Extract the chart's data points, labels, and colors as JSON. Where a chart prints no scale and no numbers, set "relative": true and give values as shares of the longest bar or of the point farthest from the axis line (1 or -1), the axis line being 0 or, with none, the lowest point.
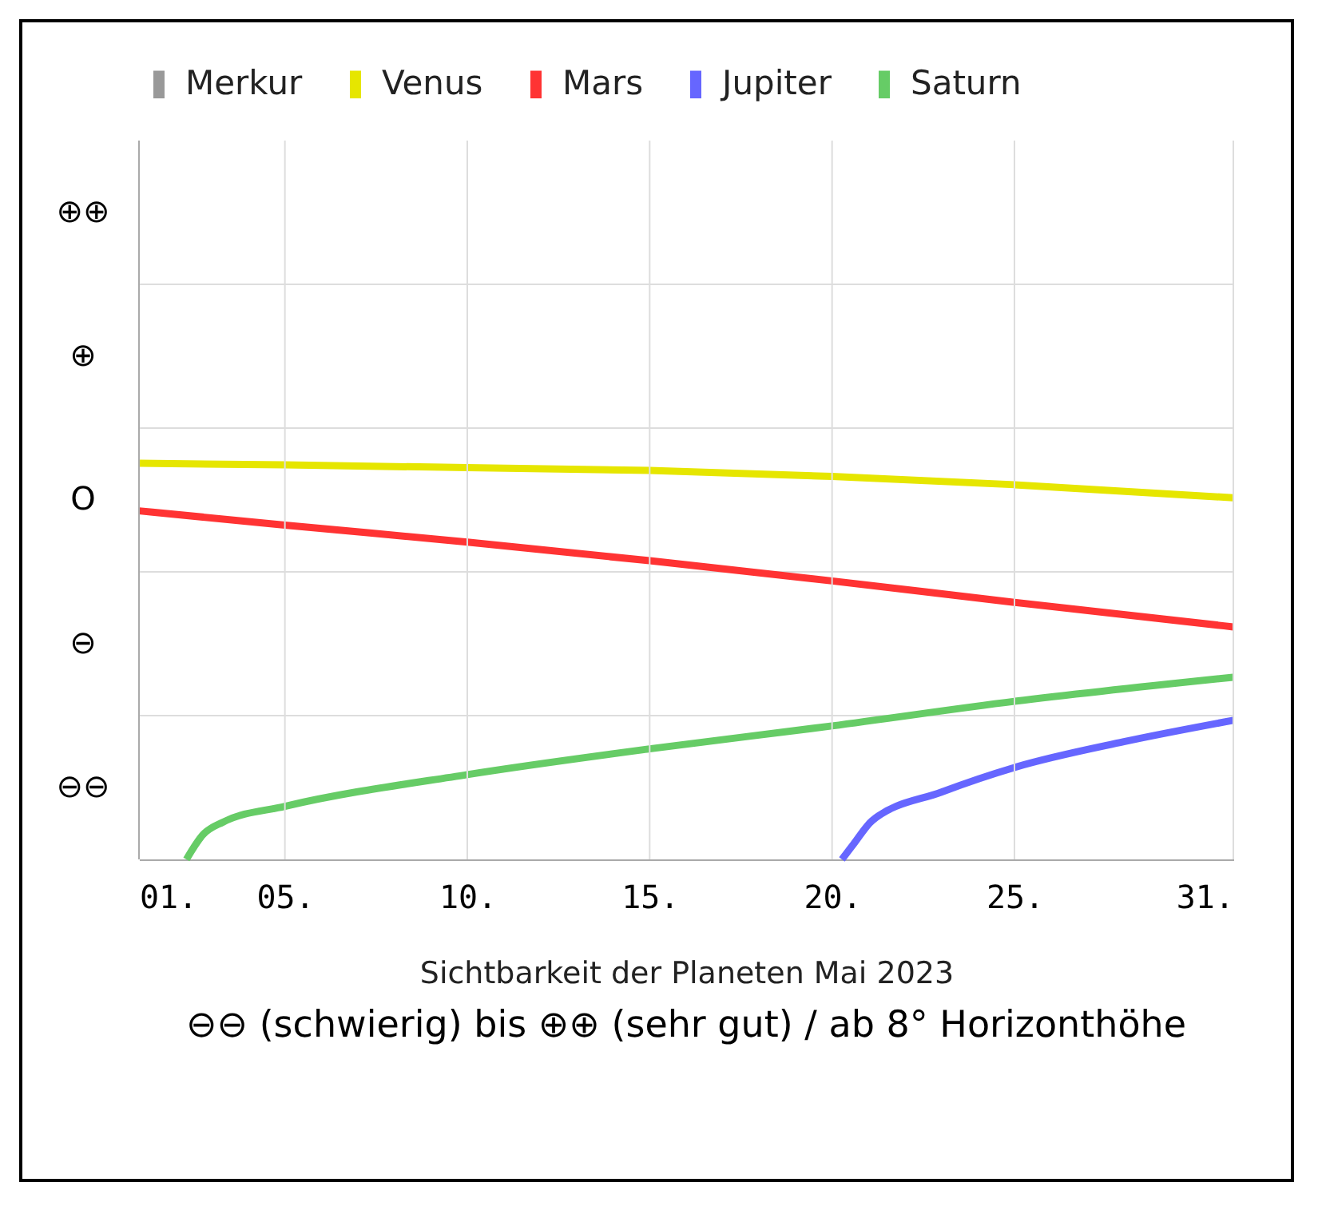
{
  "chart_data": {
    "type": "line",
    "xlabel": "Sichtbarkeit der Planeten Mai 2023",
    "relative": true,
    "annotations": [
      "⊖⊖ (schwierig) bis ⊕⊕ (sehr gut) / ab 8° Horizonthöhe",
      "⊖⊖",
      "⊖",
      "O",
      "⊕",
      "⊕⊕"
    ],
    "series": [
      {
        "name": "Merkur",
        "color": "#999999"
      },
      {
        "name": "Venus",
        "color": "#e6e600",
        "x": [
          1,
          5,
          10,
          15,
          20,
          25,
          31
        ],
        "values": [
          1,
          0.996,
          0.989,
          0.982,
          0.967,
          0.946,
          0.913
        ]
      },
      {
        "name": "Mars",
        "color": "#ff3333",
        "x": [
          1,
          5,
          10,
          15,
          20,
          25,
          31
        ],
        "values": [
          0.88,
          0.844,
          0.801,
          0.754,
          0.703,
          0.649,
          0.587
        ]
      },
      {
        "name": "Jupiter",
        "color": "#6666ff",
        "x": [
          20.27,
          20.6,
          21.1,
          23,
          25,
          28,
          31
        ],
        "values": [
          0,
          0.04,
          0.098,
          0.17,
          0.232,
          0.297,
          0.351
        ]
      },
      {
        "name": "Saturn",
        "color": "#66cc66",
        "x": [
          2.3,
          2.75,
          3.3,
          5,
          10,
          15,
          20,
          25,
          31
        ],
        "values": [
          0,
          0.062,
          0.094,
          0.134,
          0.214,
          0.279,
          0.337,
          0.399,
          0.46
        ]
      }
    ],
    "xlim": [
      1,
      31
    ],
    "xticks": [
      {
        "value": 1,
        "label": "01."
      },
      {
        "value": 5,
        "label": "05."
      },
      {
        "value": 10,
        "label": "10."
      },
      {
        "value": 15,
        "label": "15."
      },
      {
        "value": 20,
        "label": "20."
      },
      {
        "value": 25,
        "label": "25."
      },
      {
        "value": 31,
        "label": "31."
      }
    ],
    "grid": true,
    "legend": "top",
    "marker": "none",
    "line_style": "solid"
  }
}
